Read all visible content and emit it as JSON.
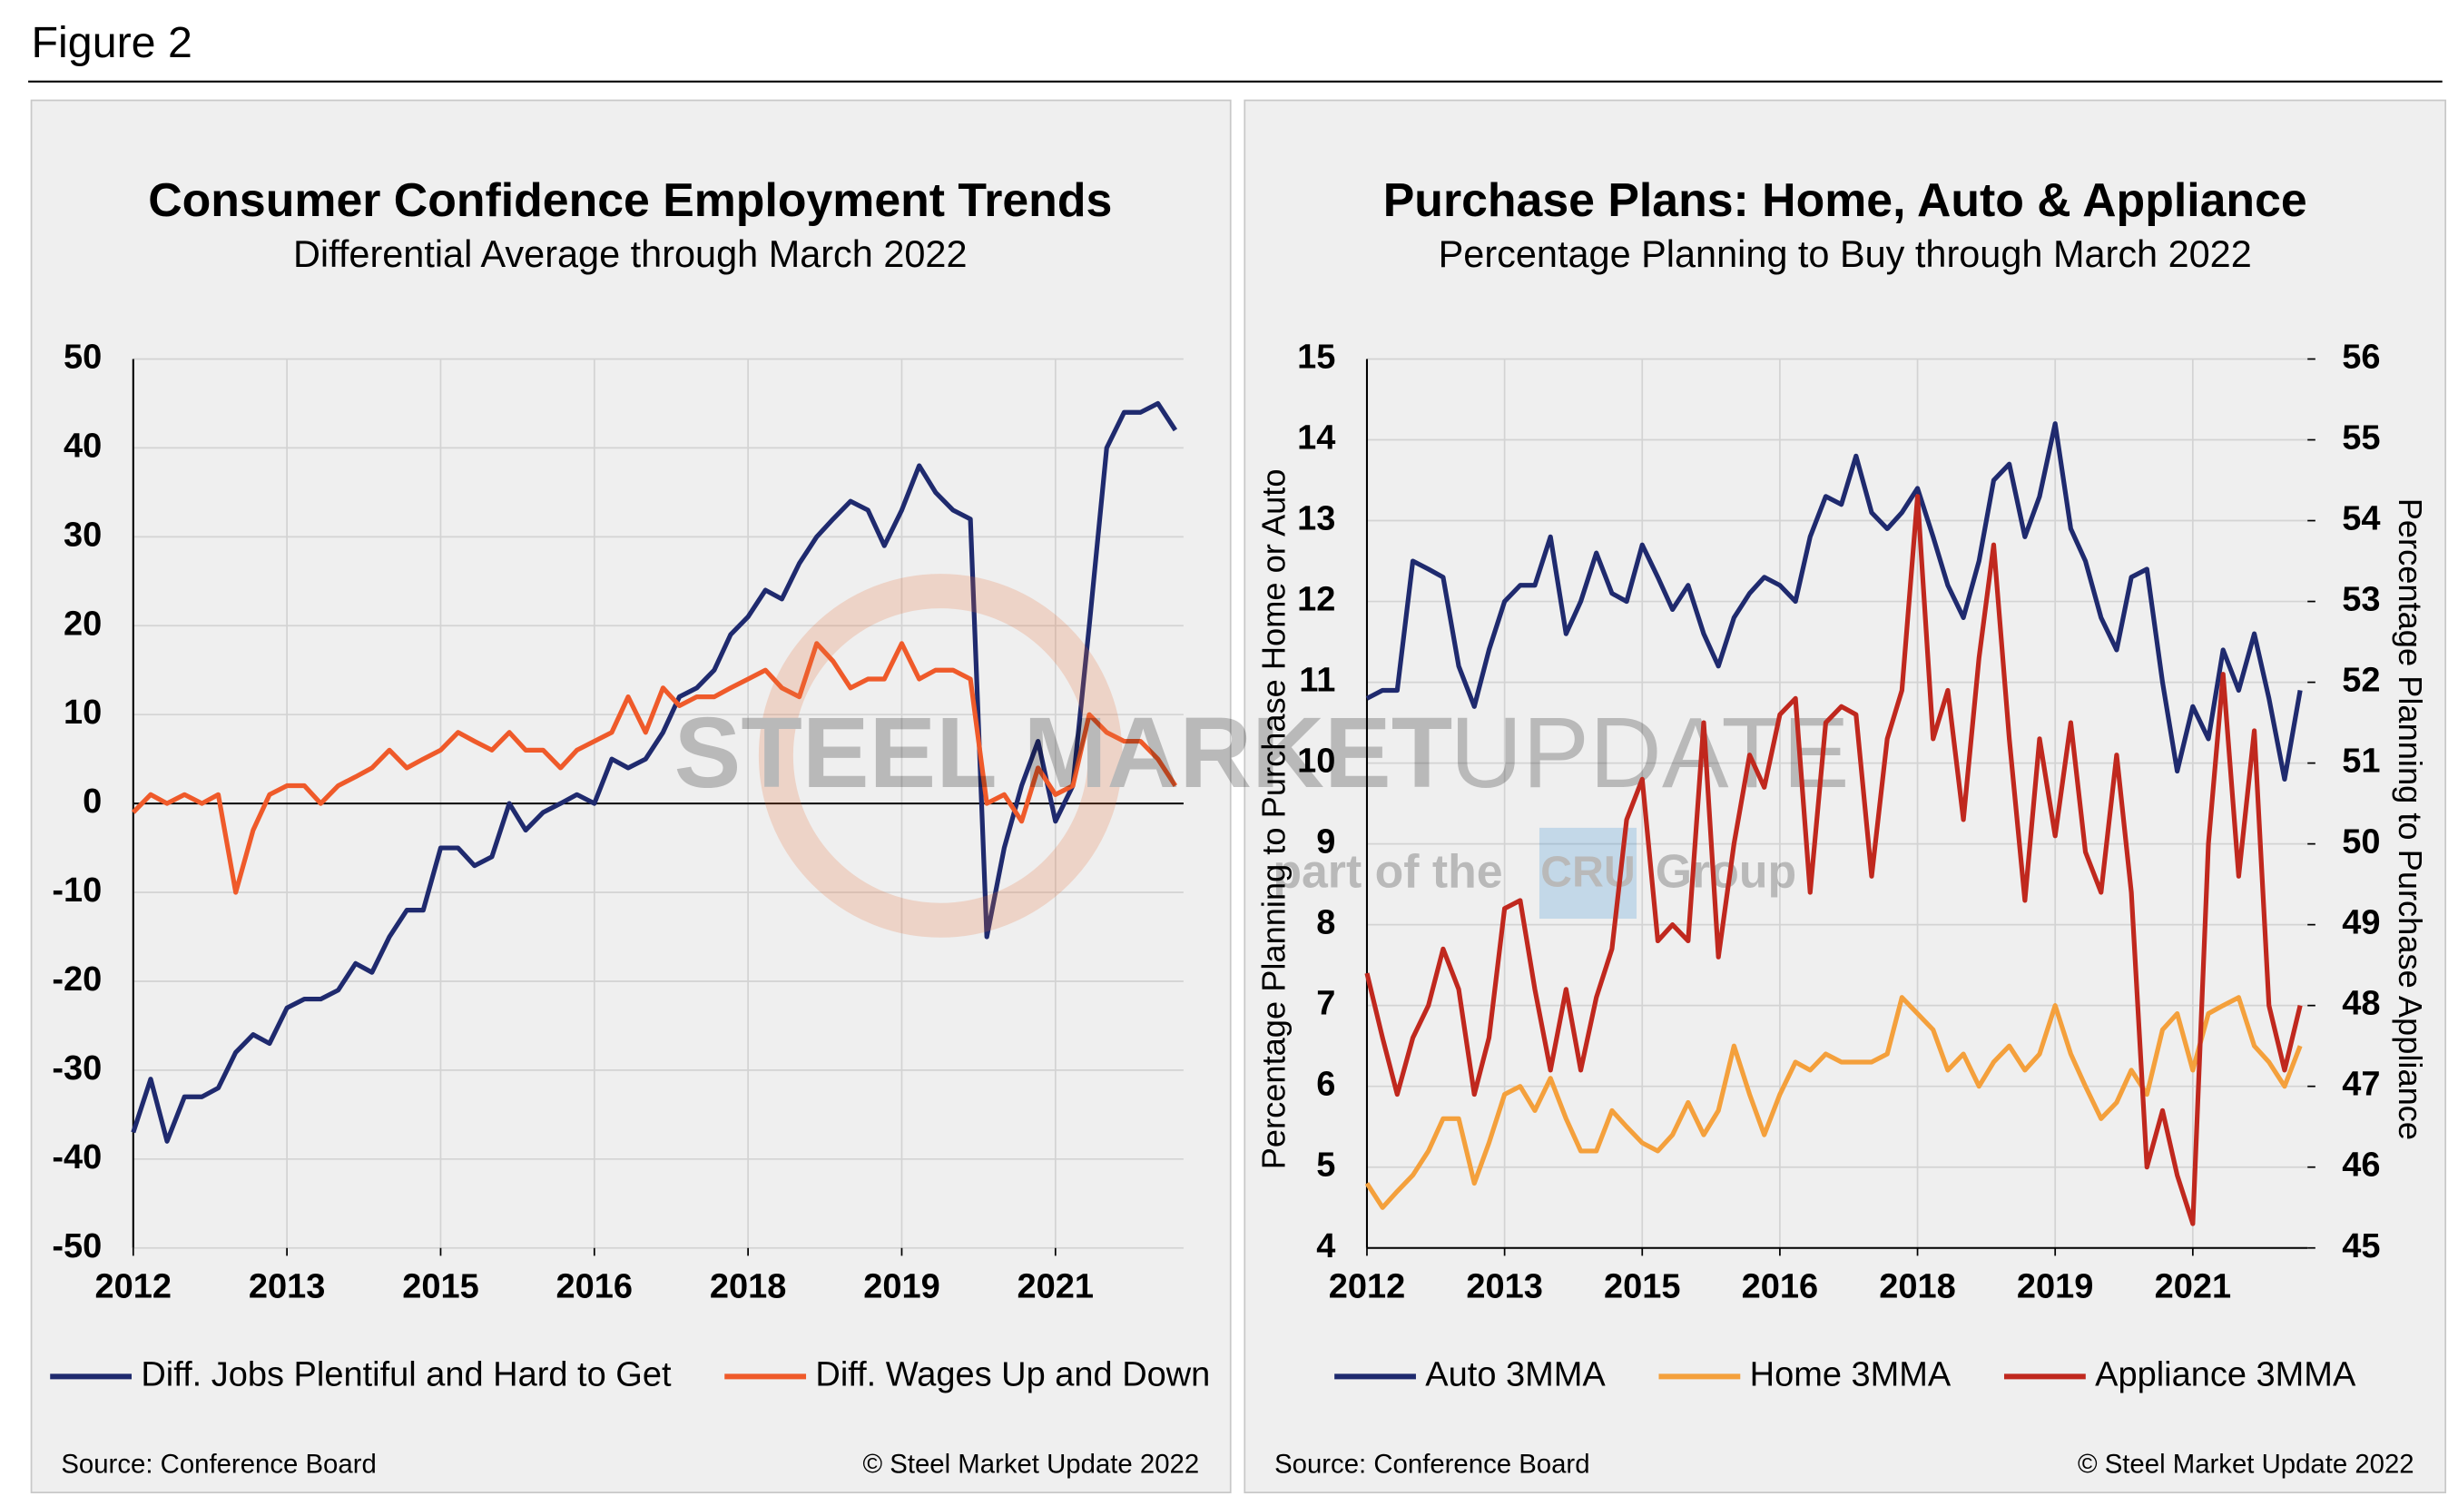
{
  "figure_label": "Figure 2",
  "watermark": {
    "brand_bold": "STEEL MARKET",
    "brand_light": "UPDATE",
    "prefix": "part of the",
    "logo": "CRU",
    "suffix": "Group"
  },
  "chart_data": [
    {
      "type": "line",
      "title": "Consumer Confidence Employment Trends",
      "subtitle": "Differential Average through March 2022",
      "source": "Source: Conference Board",
      "copyright": "© Steel Market Update 2022",
      "x": [
        2012,
        2012.17,
        2012.33,
        2012.5,
        2012.67,
        2012.83,
        2013,
        2013.17,
        2013.33,
        2013.5,
        2013.67,
        2013.83,
        2014,
        2014.17,
        2014.33,
        2014.5,
        2014.67,
        2014.83,
        2015,
        2015.17,
        2015.33,
        2015.5,
        2015.67,
        2015.83,
        2016,
        2016.17,
        2016.33,
        2016.5,
        2016.67,
        2016.83,
        2017,
        2017.17,
        2017.33,
        2017.5,
        2017.67,
        2017.83,
        2018,
        2018.17,
        2018.33,
        2018.5,
        2018.67,
        2018.83,
        2019,
        2019.17,
        2019.33,
        2019.5,
        2019.67,
        2019.83,
        2020,
        2020.17,
        2020.33,
        2020.5,
        2020.67,
        2020.83,
        2021,
        2021.17,
        2021.33,
        2021.5,
        2021.67,
        2021.83,
        2022,
        2022.17
      ],
      "xlim": [
        2012,
        2022.25
      ],
      "xticks": [
        2012,
        {
          "value": 2013.5,
          "label": "2013"
        },
        2015,
        {
          "value": 2016.5,
          "label": "2016"
        },
        2018,
        {
          "value": 2019.5,
          "label": "2019"
        },
        2021
      ],
      "ylim": [
        -50,
        50
      ],
      "yticks": [
        -50,
        -40,
        -30,
        -20,
        -10,
        0,
        10,
        20,
        30,
        40,
        50
      ],
      "grid": true,
      "legend": "bottom",
      "series": [
        {
          "name": "Diff. Jobs Plentiful and Hard to Get",
          "color": "#1f2a6e",
          "values": [
            -37,
            -31,
            -38,
            -33,
            -33,
            -32,
            -28,
            -26,
            -27,
            -23,
            -22,
            -22,
            -21,
            -18,
            -19,
            -15,
            -12,
            -12,
            -5,
            -5,
            -7,
            -6,
            0,
            -3,
            -1,
            0,
            1,
            0,
            5,
            4,
            5,
            8,
            12,
            13,
            15,
            19,
            21,
            24,
            23,
            27,
            30,
            32,
            34,
            33,
            29,
            33,
            38,
            35,
            33,
            32,
            -15,
            -5,
            2,
            7,
            -2,
            2,
            20,
            40,
            44,
            44,
            45,
            42
          ]
        },
        {
          "name": "Diff. Wages Up and Down",
          "color": "#ef5a2a",
          "values": [
            -1,
            1,
            0,
            1,
            0,
            1,
            -10,
            -3,
            1,
            2,
            2,
            0,
            2,
            3,
            4,
            6,
            4,
            5,
            6,
            8,
            7,
            6,
            8,
            6,
            6,
            4,
            6,
            7,
            8,
            12,
            8,
            13,
            11,
            12,
            12,
            13,
            14,
            15,
            13,
            12,
            18,
            16,
            13,
            14,
            14,
            18,
            14,
            15,
            15,
            14,
            0,
            1,
            -2,
            4,
            1,
            2,
            10,
            8,
            7,
            7,
            5,
            2
          ]
        }
      ]
    },
    {
      "type": "line",
      "title": "Purchase Plans: Home, Auto & Appliance",
      "subtitle": "Percentage Planning to Buy through March 2022",
      "source": "Source: Conference Board",
      "copyright": "© Steel Market Update 2022",
      "y_label": "Percentage Planning to Purchase Home or Auto",
      "y2_label": "Percentage Planning to Purchase Appliance",
      "x": [
        2012,
        2012.17,
        2012.33,
        2012.5,
        2012.67,
        2012.83,
        2013,
        2013.17,
        2013.33,
        2013.5,
        2013.67,
        2013.83,
        2014,
        2014.17,
        2014.33,
        2014.5,
        2014.67,
        2014.83,
        2015,
        2015.17,
        2015.33,
        2015.5,
        2015.67,
        2015.83,
        2016,
        2016.17,
        2016.33,
        2016.5,
        2016.67,
        2016.83,
        2017,
        2017.17,
        2017.33,
        2017.5,
        2017.67,
        2017.83,
        2018,
        2018.17,
        2018.33,
        2018.5,
        2018.67,
        2018.83,
        2019,
        2019.17,
        2019.33,
        2019.5,
        2019.67,
        2019.83,
        2020,
        2020.17,
        2020.33,
        2020.5,
        2020.67,
        2020.83,
        2021,
        2021.17,
        2021.33,
        2021.5,
        2021.67,
        2021.83,
        2022,
        2022.17
      ],
      "xlim": [
        2012,
        2022.25
      ],
      "xticks": [
        2012,
        {
          "value": 2013.5,
          "label": "2013"
        },
        2015,
        {
          "value": 2016.5,
          "label": "2016"
        },
        2018,
        {
          "value": 2019.5,
          "label": "2019"
        },
        2021
      ],
      "ylim": [
        4,
        15
      ],
      "yticks": [
        4,
        5,
        6,
        7,
        8,
        9,
        10,
        11,
        12,
        13,
        14,
        15
      ],
      "y2lim": [
        45,
        56
      ],
      "y2ticks": [
        45,
        46,
        47,
        48,
        49,
        50,
        51,
        52,
        53,
        54,
        55,
        56
      ],
      "grid": true,
      "legend": "bottom",
      "series": [
        {
          "name": "Auto 3MMA",
          "color": "#1f2a6e",
          "values": [
            10.8,
            10.9,
            10.9,
            12.5,
            12.4,
            12.3,
            11.2,
            10.7,
            11.4,
            12.0,
            12.2,
            12.2,
            12.8,
            11.6,
            12.0,
            12.6,
            12.1,
            12.0,
            12.7,
            12.3,
            11.9,
            12.2,
            11.6,
            11.2,
            11.8,
            12.1,
            12.3,
            12.2,
            12.0,
            12.8,
            13.3,
            13.2,
            13.8,
            13.1,
            12.9,
            13.1,
            13.4,
            12.8,
            12.2,
            11.8,
            12.5,
            13.5,
            13.7,
            12.8,
            13.3,
            14.2,
            12.9,
            12.5,
            11.8,
            11.4,
            12.3,
            12.4,
            11.0,
            9.9,
            10.7,
            10.3,
            11.4,
            10.9,
            11.6,
            10.8,
            9.8,
            10.9
          ]
        },
        {
          "name": "Home 3MMA",
          "color": "#f4a03c",
          "values": [
            4.8,
            4.5,
            4.7,
            4.9,
            5.2,
            5.6,
            5.6,
            4.8,
            5.3,
            5.9,
            6.0,
            5.7,
            6.1,
            5.6,
            5.2,
            5.2,
            5.7,
            5.5,
            5.3,
            5.2,
            5.4,
            5.8,
            5.4,
            5.7,
            6.5,
            5.9,
            5.4,
            5.9,
            6.3,
            6.2,
            6.4,
            6.3,
            6.3,
            6.3,
            6.4,
            7.1,
            6.9,
            6.7,
            6.2,
            6.4,
            6.0,
            6.3,
            6.5,
            6.2,
            6.4,
            7.0,
            6.4,
            6.0,
            5.6,
            5.8,
            6.2,
            5.9,
            6.7,
            6.9,
            6.2,
            6.9,
            7.0,
            7.1,
            6.5,
            6.3,
            6.0,
            6.5
          ]
        },
        {
          "name": "Appliance 3MMA",
          "color": "#c0281e",
          "axis": "y2",
          "values": [
            48.4,
            47.6,
            46.9,
            47.6,
            48.0,
            48.7,
            48.2,
            46.9,
            47.6,
            49.2,
            49.3,
            48.2,
            47.2,
            48.2,
            47.2,
            48.1,
            48.7,
            50.3,
            50.8,
            48.8,
            49.0,
            48.8,
            51.5,
            48.6,
            50.0,
            51.1,
            50.7,
            51.6,
            51.8,
            49.4,
            51.5,
            51.7,
            51.6,
            49.6,
            51.3,
            51.9,
            54.3,
            51.3,
            51.9,
            50.3,
            52.3,
            53.7,
            51.3,
            49.3,
            51.3,
            50.1,
            51.5,
            49.9,
            49.4,
            51.1,
            49.4,
            46.0,
            46.7,
            45.9,
            45.3,
            50.0,
            52.1,
            49.6,
            51.4,
            48.0,
            47.2,
            48.0
          ]
        }
      ]
    }
  ]
}
